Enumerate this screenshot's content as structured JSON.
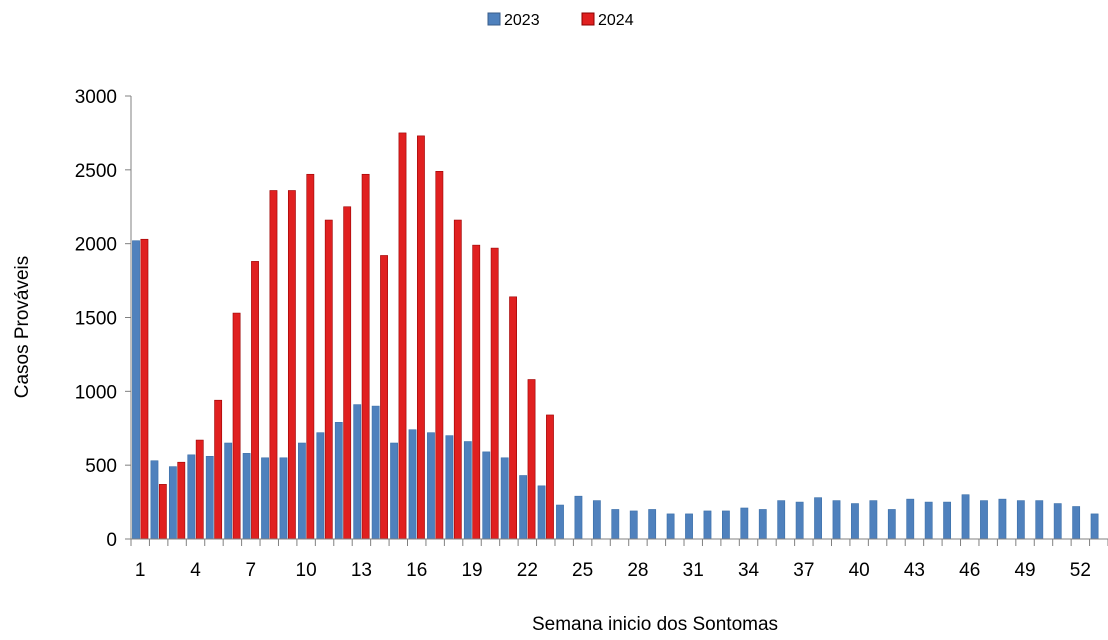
{
  "chart_data": {
    "type": "bar",
    "xlabel": "Semana inicio dos Sontomas",
    "ylabel": "Casos Prováveis",
    "ylim": [
      0,
      3000
    ],
    "yticks": [
      0,
      500,
      1000,
      1500,
      2000,
      2500,
      3000
    ],
    "xtick_labels": [
      "1",
      "4",
      "7",
      "10",
      "13",
      "16",
      "19",
      "22",
      "25",
      "28",
      "31",
      "34",
      "37",
      "40",
      "43",
      "46",
      "49",
      "52"
    ],
    "legend_position": "top-center",
    "categories": [
      1,
      2,
      3,
      4,
      5,
      6,
      7,
      8,
      9,
      10,
      11,
      12,
      13,
      14,
      15,
      16,
      17,
      18,
      19,
      20,
      21,
      22,
      23,
      24,
      25,
      26,
      27,
      28,
      29,
      30,
      31,
      32,
      33,
      34,
      35,
      36,
      37,
      38,
      39,
      40,
      41,
      42,
      43,
      44,
      45,
      46,
      47,
      48,
      49,
      50,
      51,
      52,
      53
    ],
    "series": [
      {
        "name": "2023",
        "color": "#4f81bd",
        "values": [
          2020,
          530,
          490,
          570,
          560,
          650,
          580,
          550,
          550,
          650,
          720,
          790,
          910,
          900,
          650,
          740,
          720,
          700,
          660,
          590,
          550,
          430,
          360,
          230,
          290,
          260,
          200,
          190,
          200,
          170,
          170,
          190,
          190,
          210,
          200,
          260,
          250,
          280,
          260,
          240,
          260,
          200,
          270,
          250,
          250,
          300,
          260,
          270,
          260,
          260,
          240,
          220,
          170
        ]
      },
      {
        "name": "2024",
        "color": "#e02020",
        "values": [
          2030,
          370,
          520,
          670,
          940,
          1530,
          1880,
          2360,
          2360,
          2470,
          2160,
          2250,
          2470,
          1920,
          2750,
          2730,
          2490,
          2160,
          1990,
          1970,
          1640,
          1080,
          840,
          null,
          null,
          null,
          null,
          null,
          null,
          null,
          null,
          null,
          null,
          null,
          null,
          null,
          null,
          null,
          null,
          null,
          null,
          null,
          null,
          null,
          null,
          null,
          null,
          null,
          null,
          null,
          null,
          null,
          null
        ]
      }
    ]
  }
}
